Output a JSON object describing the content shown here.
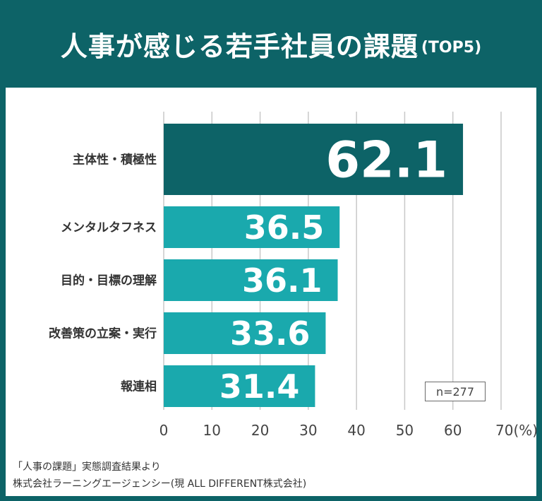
{
  "title": {
    "main": "人事が感じる若手社員の課題",
    "sub": "(TOP5)"
  },
  "chart_data": {
    "type": "bar",
    "orientation": "horizontal",
    "categories": [
      "主体性・積極性",
      "メンタルタフネス",
      "目的・目標の理解",
      "改善策の立案・実行",
      "報連相"
    ],
    "values": [
      62.1,
      36.5,
      36.1,
      33.6,
      31.4
    ],
    "value_labels": [
      "62.1",
      "36.5",
      "36.1",
      "33.6",
      "31.4"
    ],
    "x_ticks": [
      "0",
      "10",
      "20",
      "30",
      "40",
      "50",
      "60",
      "70(%)"
    ],
    "x_tick_values": [
      0,
      10,
      20,
      30,
      40,
      50,
      60,
      70
    ],
    "xlim": [
      0,
      70
    ],
    "unit": "%",
    "grid": true,
    "highlight_index": 0,
    "colors": {
      "highlight": "#0d6367",
      "normal": "#1aa9ad",
      "grid": "#c8c8c8",
      "label": "#333333"
    }
  },
  "sample_size": "n=277",
  "source": {
    "line1": "「人事の課題」実態調査結果より",
    "line2": "株式会社ラーニングエージェンシー(現 ALL DIFFERENT株式会社)"
  }
}
